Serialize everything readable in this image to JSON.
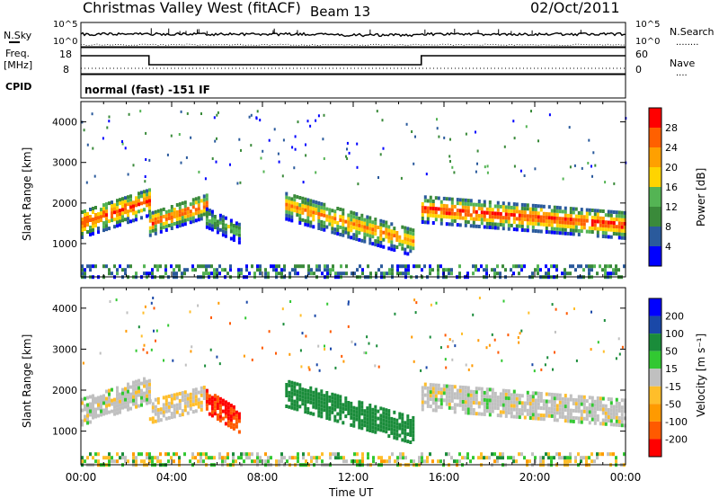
{
  "header": {
    "station": "Christmas Valley West (fitACF)",
    "beam": "Beam 13",
    "date": "02/Oct/2011"
  },
  "strip_labels": {
    "nsky": "N.Sky",
    "nsearch": "N.Search",
    "nsearch_dots": "........",
    "freq": "Freq.",
    "freq_unit": "[MHz]",
    "nave": "Nave",
    "nave_dots": "....",
    "cpid": "CPID",
    "cpid_text": "normal (fast) -151 IF",
    "noise_ticks": [
      "10^5",
      "10^0"
    ],
    "noise_ticks_right": [
      "10^5",
      "10^0"
    ],
    "freq_ticks": [
      "18",
      "8"
    ],
    "nave_ticks": [
      "60",
      "0"
    ]
  },
  "colors": {
    "power": [
      "#0000ff",
      "#2a5a9c",
      "#3a8a3a",
      "#54b454",
      "#ffd400",
      "#ffa000",
      "#ff6000",
      "#ff0000"
    ],
    "velocity": [
      "#ff0000",
      "#ff5a00",
      "#ff9a00",
      "#ffbe2a",
      "#c0c0c0",
      "#32c832",
      "#1a8c3a",
      "#1a48a8",
      "#0000ff"
    ]
  },
  "chart_data": [
    {
      "type": "heatmap",
      "title": "",
      "xlabel": "Time UT",
      "ylabel": "Slant Range [km]",
      "x_ticks": [
        "00:00",
        "04:00",
        "08:00",
        "12:00",
        "16:00",
        "20:00",
        "00:00"
      ],
      "xlim_hours": [
        0,
        24
      ],
      "y_ticks": [
        1000,
        2000,
        3000,
        4000
      ],
      "ylim": [
        180,
        4500
      ],
      "colorbar": {
        "label": "Power [dB]",
        "ticks": [
          4,
          8,
          12,
          16,
          20,
          24,
          28
        ],
        "range": [
          0,
          32
        ]
      },
      "echo_bands": [
        {
          "t_start": 0.0,
          "t_end": 3.0,
          "range_center_start": 1550,
          "range_center_end": 2100,
          "width": 700,
          "peak": 28
        },
        {
          "t_start": 3.0,
          "t_end": 5.5,
          "range_center_start": 1550,
          "range_center_end": 2000,
          "width": 600,
          "peak": 28
        },
        {
          "t_start": 5.5,
          "t_end": 7.0,
          "range_center_start": 1700,
          "range_center_end": 1300,
          "width": 500,
          "peak": 14
        },
        {
          "t_start": 9.0,
          "t_end": 14.6,
          "range_center_start": 2000,
          "range_center_end": 1100,
          "width": 700,
          "peak": 24
        },
        {
          "t_start": 15.0,
          "t_end": 24.0,
          "range_center_start": 1900,
          "range_center_end": 1500,
          "width": 650,
          "peak": 30
        }
      ]
    },
    {
      "type": "heatmap",
      "title": "",
      "xlabel": "Time UT",
      "ylabel": "Slant Range [km]",
      "x_ticks": [
        "00:00",
        "04:00",
        "08:00",
        "12:00",
        "16:00",
        "20:00",
        "00:00"
      ],
      "xlim_hours": [
        0,
        24
      ],
      "y_ticks": [
        1000,
        2000,
        3000,
        4000
      ],
      "ylim": [
        180,
        4500
      ],
      "colorbar": {
        "label": "Velocity [m s⁻¹]",
        "ticks": [
          200,
          100,
          50,
          15,
          -15,
          -50,
          -100,
          -200
        ],
        "range": [
          -250,
          250
        ]
      },
      "echo_bands": [
        {
          "t_start": 0.0,
          "t_end": 3.0,
          "range_center_start": 1550,
          "range_center_end": 2100,
          "width": 700,
          "velocity": 0
        },
        {
          "t_start": 3.0,
          "t_end": 5.5,
          "range_center_start": 1550,
          "range_center_end": 1900,
          "width": 600,
          "velocity": -10
        },
        {
          "t_start": 5.5,
          "t_end": 7.0,
          "range_center_start": 1800,
          "range_center_end": 1300,
          "width": 600,
          "velocity": -200
        },
        {
          "t_start": 9.0,
          "t_end": 14.6,
          "range_center_start": 2000,
          "range_center_end": 1100,
          "width": 700,
          "velocity": 80
        },
        {
          "t_start": 15.0,
          "t_end": 24.0,
          "range_center_start": 1900,
          "range_center_end": 1500,
          "width": 650,
          "velocity": 0
        }
      ]
    }
  ]
}
